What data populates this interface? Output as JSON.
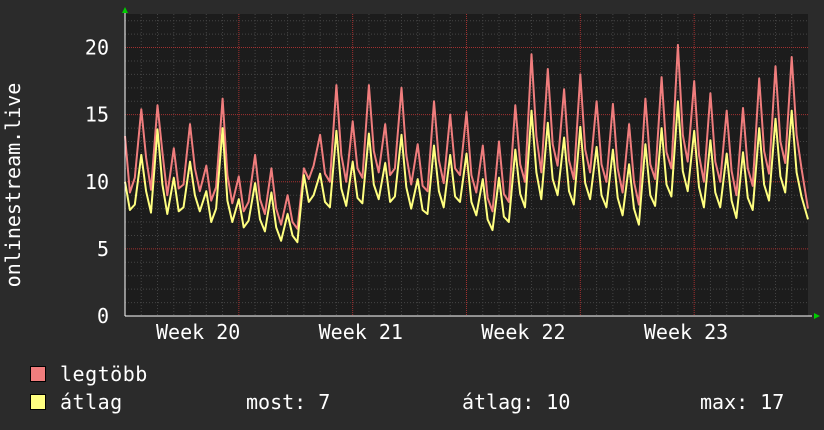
{
  "chart_data": {
    "type": "line",
    "ylabel": "onlinestream.live",
    "ylim": [
      0,
      22.5
    ],
    "yticks": [
      0,
      5,
      10,
      15,
      20
    ],
    "xlim": [
      0,
      42
    ],
    "week_labels": [
      {
        "label": "Week 20",
        "x": 4.5
      },
      {
        "label": "Week 21",
        "x": 14.5
      },
      {
        "label": "Week 22",
        "x": 24.5
      },
      {
        "label": "Week 23",
        "x": 34.5
      }
    ],
    "series": [
      {
        "name": "legtöbb",
        "color": "#f07d7d",
        "points": [
          [
            0,
            13.4
          ],
          [
            0.3,
            9.2
          ],
          [
            0.6,
            10.3
          ],
          [
            1.0,
            15.4
          ],
          [
            1.3,
            11.8
          ],
          [
            1.6,
            9.4
          ],
          [
            2.0,
            15.7
          ],
          [
            2.3,
            12.2
          ],
          [
            2.6,
            9.0
          ],
          [
            3.0,
            12.5
          ],
          [
            3.3,
            9.5
          ],
          [
            3.6,
            9.8
          ],
          [
            4.0,
            14.3
          ],
          [
            4.3,
            11.0
          ],
          [
            4.6,
            9.3
          ],
          [
            5.0,
            11.2
          ],
          [
            5.3,
            8.6
          ],
          [
            5.6,
            9.6
          ],
          [
            6.0,
            16.2
          ],
          [
            6.3,
            10.5
          ],
          [
            6.6,
            8.4
          ],
          [
            7.0,
            10.4
          ],
          [
            7.3,
            7.8
          ],
          [
            7.6,
            8.5
          ],
          [
            8.0,
            12.0
          ],
          [
            8.3,
            8.7
          ],
          [
            8.6,
            7.6
          ],
          [
            9.0,
            11.0
          ],
          [
            9.3,
            8.0
          ],
          [
            9.6,
            6.8
          ],
          [
            10.0,
            9.0
          ],
          [
            10.3,
            7.0
          ],
          [
            10.6,
            6.5
          ],
          [
            11.0,
            11.0
          ],
          [
            11.3,
            10.2
          ],
          [
            11.6,
            11.2
          ],
          [
            12.0,
            13.5
          ],
          [
            12.3,
            10.6
          ],
          [
            12.6,
            10.0
          ],
          [
            13.0,
            17.2
          ],
          [
            13.3,
            12.0
          ],
          [
            13.6,
            10.0
          ],
          [
            14.0,
            14.5
          ],
          [
            14.3,
            11.0
          ],
          [
            14.6,
            10.3
          ],
          [
            15.0,
            17.2
          ],
          [
            15.3,
            12.3
          ],
          [
            15.6,
            10.7
          ],
          [
            16.0,
            14.3
          ],
          [
            16.3,
            10.5
          ],
          [
            16.6,
            11.0
          ],
          [
            17.0,
            17.0
          ],
          [
            17.3,
            12.0
          ],
          [
            17.6,
            9.8
          ],
          [
            18.0,
            12.8
          ],
          [
            18.3,
            9.7
          ],
          [
            18.6,
            9.3
          ],
          [
            19.0,
            16.0
          ],
          [
            19.3,
            11.6
          ],
          [
            19.6,
            9.9
          ],
          [
            20.0,
            15.0
          ],
          [
            20.3,
            11.0
          ],
          [
            20.6,
            10.5
          ],
          [
            21.0,
            15.2
          ],
          [
            21.3,
            10.5
          ],
          [
            21.6,
            9.2
          ],
          [
            22.0,
            12.7
          ],
          [
            22.3,
            8.8
          ],
          [
            22.6,
            7.8
          ],
          [
            23.0,
            13.0
          ],
          [
            23.3,
            9.1
          ],
          [
            23.6,
            8.5
          ],
          [
            24.0,
            15.7
          ],
          [
            24.3,
            11.3
          ],
          [
            24.6,
            10.0
          ],
          [
            25.0,
            19.5
          ],
          [
            25.3,
            13.4
          ],
          [
            25.6,
            10.7
          ],
          [
            26.0,
            18.4
          ],
          [
            26.3,
            12.8
          ],
          [
            26.6,
            11.2
          ],
          [
            27.0,
            16.9
          ],
          [
            27.3,
            11.6
          ],
          [
            27.6,
            10.2
          ],
          [
            28.0,
            18.0
          ],
          [
            28.3,
            12.4
          ],
          [
            28.6,
            10.7
          ],
          [
            29.0,
            16.0
          ],
          [
            29.3,
            11.3
          ],
          [
            29.6,
            10.0
          ],
          [
            30.0,
            15.8
          ],
          [
            30.3,
            11.0
          ],
          [
            30.6,
            9.2
          ],
          [
            31.0,
            14.3
          ],
          [
            31.3,
            10.0
          ],
          [
            31.6,
            8.3
          ],
          [
            32.0,
            16.2
          ],
          [
            32.3,
            11.3
          ],
          [
            32.6,
            10.2
          ],
          [
            33.0,
            17.8
          ],
          [
            33.3,
            12.2
          ],
          [
            33.6,
            11.0
          ],
          [
            34.0,
            20.2
          ],
          [
            34.3,
            13.5
          ],
          [
            34.6,
            11.5
          ],
          [
            35.0,
            17.5
          ],
          [
            35.3,
            12.0
          ],
          [
            35.6,
            10.0
          ],
          [
            36.0,
            16.6
          ],
          [
            36.3,
            11.5
          ],
          [
            36.6,
            10.0
          ],
          [
            37.0,
            15.3
          ],
          [
            37.3,
            10.8
          ],
          [
            37.6,
            9.0
          ],
          [
            38.0,
            15.5
          ],
          [
            38.3,
            11.0
          ],
          [
            38.6,
            9.7
          ],
          [
            39.0,
            17.7
          ],
          [
            39.3,
            12.3
          ],
          [
            39.6,
            10.6
          ],
          [
            40.0,
            18.6
          ],
          [
            40.3,
            13.0
          ],
          [
            40.6,
            11.4
          ],
          [
            41.0,
            19.3
          ],
          [
            41.3,
            13.5
          ],
          [
            41.6,
            11.0
          ],
          [
            42.0,
            8.0
          ]
        ]
      },
      {
        "name": "átlag",
        "color": "#ffff80",
        "points": [
          [
            0,
            10.0
          ],
          [
            0.3,
            7.9
          ],
          [
            0.6,
            8.3
          ],
          [
            1.0,
            12.0
          ],
          [
            1.3,
            9.3
          ],
          [
            1.6,
            7.7
          ],
          [
            2.0,
            13.9
          ],
          [
            2.3,
            9.8
          ],
          [
            2.6,
            7.6
          ],
          [
            3.0,
            10.3
          ],
          [
            3.3,
            7.8
          ],
          [
            3.6,
            8.1
          ],
          [
            4.0,
            11.5
          ],
          [
            4.3,
            9.0
          ],
          [
            4.6,
            7.8
          ],
          [
            5.0,
            9.3
          ],
          [
            5.3,
            7.0
          ],
          [
            5.6,
            8.0
          ],
          [
            6.0,
            14.0
          ],
          [
            6.3,
            8.6
          ],
          [
            6.6,
            7.0
          ],
          [
            7.0,
            8.7
          ],
          [
            7.3,
            6.6
          ],
          [
            7.6,
            7.1
          ],
          [
            8.0,
            9.9
          ],
          [
            8.3,
            7.2
          ],
          [
            8.6,
            6.3
          ],
          [
            9.0,
            9.2
          ],
          [
            9.3,
            6.6
          ],
          [
            9.6,
            5.6
          ],
          [
            10.0,
            7.6
          ],
          [
            10.3,
            6.0
          ],
          [
            10.6,
            5.5
          ],
          [
            11.0,
            10.5
          ],
          [
            11.3,
            8.5
          ],
          [
            11.6,
            9.0
          ],
          [
            12.0,
            10.6
          ],
          [
            12.3,
            8.5
          ],
          [
            12.6,
            8.1
          ],
          [
            13.0,
            13.8
          ],
          [
            13.3,
            9.5
          ],
          [
            13.6,
            8.2
          ],
          [
            14.0,
            11.5
          ],
          [
            14.3,
            8.8
          ],
          [
            14.6,
            8.4
          ],
          [
            15.0,
            13.6
          ],
          [
            15.3,
            9.8
          ],
          [
            15.6,
            8.7
          ],
          [
            16.0,
            11.4
          ],
          [
            16.3,
            8.5
          ],
          [
            16.6,
            8.9
          ],
          [
            17.0,
            13.5
          ],
          [
            17.3,
            9.6
          ],
          [
            17.6,
            8.0
          ],
          [
            18.0,
            10.2
          ],
          [
            18.3,
            7.9
          ],
          [
            18.6,
            7.6
          ],
          [
            19.0,
            12.7
          ],
          [
            19.3,
            9.3
          ],
          [
            19.6,
            8.1
          ],
          [
            20.0,
            12.0
          ],
          [
            20.3,
            8.9
          ],
          [
            20.6,
            8.5
          ],
          [
            21.0,
            12.1
          ],
          [
            21.3,
            8.5
          ],
          [
            21.6,
            7.5
          ],
          [
            22.0,
            10.2
          ],
          [
            22.3,
            7.2
          ],
          [
            22.6,
            6.4
          ],
          [
            23.0,
            10.3
          ],
          [
            23.3,
            7.4
          ],
          [
            23.6,
            7.0
          ],
          [
            24.0,
            12.4
          ],
          [
            24.3,
            9.1
          ],
          [
            24.6,
            8.1
          ],
          [
            25.0,
            15.3
          ],
          [
            25.3,
            10.7
          ],
          [
            25.6,
            8.7
          ],
          [
            26.0,
            14.4
          ],
          [
            26.3,
            10.2
          ],
          [
            26.6,
            9.0
          ],
          [
            27.0,
            13.3
          ],
          [
            27.3,
            9.3
          ],
          [
            27.6,
            8.3
          ],
          [
            28.0,
            14.1
          ],
          [
            28.3,
            9.9
          ],
          [
            28.6,
            8.7
          ],
          [
            29.0,
            12.6
          ],
          [
            29.3,
            9.0
          ],
          [
            29.6,
            8.1
          ],
          [
            30.0,
            12.4
          ],
          [
            30.3,
            8.8
          ],
          [
            30.6,
            7.5
          ],
          [
            31.0,
            11.3
          ],
          [
            31.3,
            8.0
          ],
          [
            31.6,
            6.8
          ],
          [
            32.0,
            12.8
          ],
          [
            32.3,
            9.0
          ],
          [
            32.6,
            8.2
          ],
          [
            33.0,
            14.0
          ],
          [
            33.3,
            9.8
          ],
          [
            33.6,
            8.9
          ],
          [
            34.0,
            16.0
          ],
          [
            34.3,
            10.8
          ],
          [
            34.6,
            9.3
          ],
          [
            35.0,
            13.8
          ],
          [
            35.3,
            9.6
          ],
          [
            35.6,
            8.1
          ],
          [
            36.0,
            13.1
          ],
          [
            36.3,
            9.2
          ],
          [
            36.6,
            8.1
          ],
          [
            37.0,
            12.1
          ],
          [
            37.3,
            8.6
          ],
          [
            37.6,
            7.3
          ],
          [
            38.0,
            12.2
          ],
          [
            38.3,
            8.8
          ],
          [
            38.6,
            7.9
          ],
          [
            39.0,
            14.0
          ],
          [
            39.3,
            9.8
          ],
          [
            39.6,
            8.6
          ],
          [
            40.0,
            14.7
          ],
          [
            40.3,
            10.4
          ],
          [
            40.6,
            9.2
          ],
          [
            41.0,
            15.3
          ],
          [
            41.3,
            10.7
          ],
          [
            41.6,
            8.9
          ],
          [
            42.0,
            7.2
          ]
        ]
      }
    ]
  },
  "legend": [
    {
      "label": "legtöbb",
      "color": "#f07d7d"
    },
    {
      "label": "átlag",
      "color": "#ffff80"
    }
  ],
  "stats": {
    "now_label": "most:",
    "now_value": "7",
    "avg_label": "átlag:",
    "avg_value": "10",
    "max_label": "max:",
    "max_value": "17"
  },
  "colors": {
    "background": "#2b2b2b",
    "plot_background": "#1c1c1c",
    "minor_grid": "#444444",
    "major_grid": "#a33030",
    "axis": "#ffffff",
    "arrow": "#00cc00"
  }
}
